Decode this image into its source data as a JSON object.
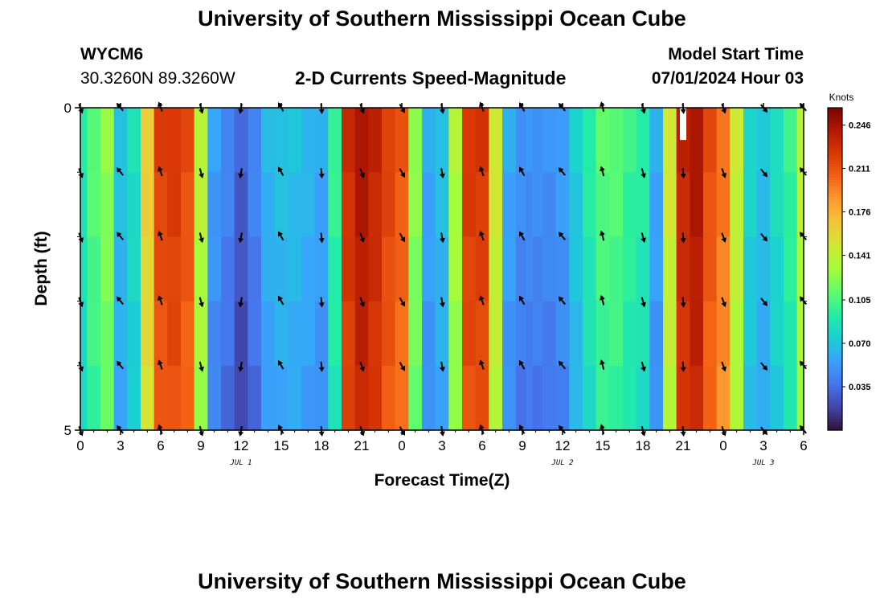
{
  "header": {
    "title": "University of Southern Mississippi Ocean Cube",
    "station_id": "WYCM6",
    "coordinates": "30.3260N  89.3260W",
    "plot_title": "2-D Currents Speed-Magnitude",
    "start_label": "Model Start Time",
    "start_value": "07/01/2024 Hour 03"
  },
  "footer": {
    "title": "University of Southern Mississippi Ocean Cube"
  },
  "chart_data": {
    "type": "heatmap",
    "title": "2-D Currents Speed-Magnitude",
    "xlabel": "Forecast Time(Z)",
    "ylabel": "Depth (ft)",
    "x_ticks": [
      "0",
      "3",
      "6",
      "9",
      "12",
      "15",
      "18",
      "21",
      "0",
      "3",
      "6",
      "9",
      "12",
      "15",
      "18",
      "21",
      "0",
      "3",
      "6"
    ],
    "x_range_hours": [
      0,
      54
    ],
    "date_labels": [
      {
        "label": "JUL 1",
        "hour": 12
      },
      {
        "label": "JUL 2",
        "hour": 36
      },
      {
        "label": "JUL 3",
        "hour": 51
      }
    ],
    "y_ticks": [
      "0",
      "5"
    ],
    "ylim": [
      0,
      5
    ],
    "colorbar": {
      "unit": "Knots",
      "ticks": [
        "0.246",
        "0.211",
        "0.176",
        "0.141",
        "0.105",
        "0.070",
        "0.035"
      ],
      "tick_values": [
        0.246,
        0.211,
        0.176,
        0.141,
        0.105,
        0.07,
        0.035
      ],
      "range": [
        0.0,
        0.26
      ],
      "colors": [
        "#30123b",
        "#4145ab",
        "#4675ed",
        "#39a2fc",
        "#1bcfd4",
        "#24eca6",
        "#61fc6c",
        "#a4fc3b",
        "#d1e834",
        "#f3c63a",
        "#fe9b2d",
        "#f36315",
        "#d93806",
        "#b11901",
        "#7a0402"
      ]
    },
    "hours": [
      0,
      1,
      2,
      3,
      4,
      5,
      6,
      7,
      8,
      9,
      10,
      11,
      12,
      13,
      14,
      15,
      16,
      17,
      18,
      19,
      20,
      21,
      22,
      23,
      24,
      25,
      26,
      27,
      28,
      29,
      30,
      31,
      32,
      33,
      33.5,
      34,
      35,
      36,
      37,
      38,
      39,
      40,
      41,
      42,
      43,
      44,
      45,
      46,
      47,
      48,
      49,
      50,
      51,
      52,
      53,
      54
    ],
    "speed_by_hour": [
      0.08,
      0.1,
      0.115,
      0.06,
      0.075,
      0.155,
      0.21,
      0.215,
      0.205,
      0.13,
      0.045,
      0.035,
      0.02,
      0.035,
      0.055,
      0.06,
      0.06,
      0.055,
      0.05,
      0.09,
      0.22,
      0.235,
      0.225,
      0.21,
      0.2,
      0.115,
      0.05,
      0.06,
      0.125,
      0.215,
      0.215,
      0.14,
      0.05,
      0.04,
      0.04,
      0.04,
      0.04,
      0.045,
      0.065,
      0.085,
      0.1,
      0.1,
      0.09,
      0.085,
      0.05,
      0.14,
      0.225,
      0.235,
      0.205,
      0.19,
      0.135,
      0.07,
      0.06,
      0.075,
      0.09,
      0.13
    ],
    "depth_rows": 5,
    "surface_boost": 0.012,
    "missing_value": {
      "hour": 45,
      "depth_range": [
        0,
        0.5
      ]
    },
    "arrows": [
      {
        "hour": 0,
        "dir_deg": 160
      },
      {
        "hour": 3,
        "dir_deg": 320
      },
      {
        "hour": 6,
        "dir_deg": 340
      },
      {
        "hour": 9,
        "dir_deg": 165
      },
      {
        "hour": 12,
        "dir_deg": 190
      },
      {
        "hour": 15,
        "dir_deg": 330
      },
      {
        "hour": 18,
        "dir_deg": 175
      },
      {
        "hour": 21,
        "dir_deg": 160
      },
      {
        "hour": 24,
        "dir_deg": 150
      },
      {
        "hour": 27,
        "dir_deg": 170
      },
      {
        "hour": 30,
        "dir_deg": 340
      },
      {
        "hour": 33,
        "dir_deg": 330
      },
      {
        "hour": 36,
        "dir_deg": 320
      },
      {
        "hour": 39,
        "dir_deg": 345
      },
      {
        "hour": 42,
        "dir_deg": 165
      },
      {
        "hour": 45,
        "dir_deg": 175
      },
      {
        "hour": 48,
        "dir_deg": 160
      },
      {
        "hour": 51,
        "dir_deg": 140
      },
      {
        "hour": 54,
        "dir_deg": 320
      }
    ],
    "arrow_depths": [
      0,
      1,
      2,
      3,
      4,
      5
    ]
  }
}
